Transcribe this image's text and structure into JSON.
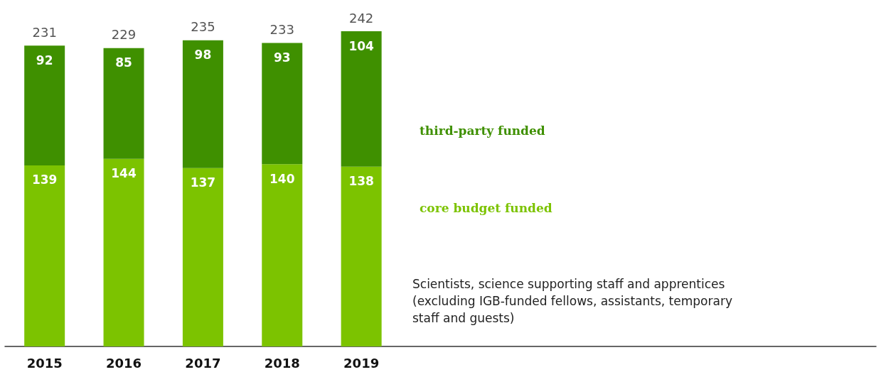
{
  "chart_data": {
    "type": "bar",
    "stacked": true,
    "categories": [
      "2015",
      "2016",
      "2017",
      "2018",
      "2019"
    ],
    "series": [
      {
        "name": "core budget funded",
        "color": "#7cc300",
        "values": [
          139,
          144,
          137,
          140,
          138
        ]
      },
      {
        "name": "third-party funded",
        "color": "#3f9000",
        "values": [
          92,
          85,
          98,
          93,
          104
        ]
      }
    ],
    "totals": [
      "231",
      "229",
      "235",
      "233",
      "242"
    ],
    "data_labels": true,
    "legend": "right",
    "grid": false,
    "annotations": [
      "Scientists, science supporting staff and apprentices (excluding IGB-funded fellows, assistants, temporary staff and guests)"
    ]
  }
}
